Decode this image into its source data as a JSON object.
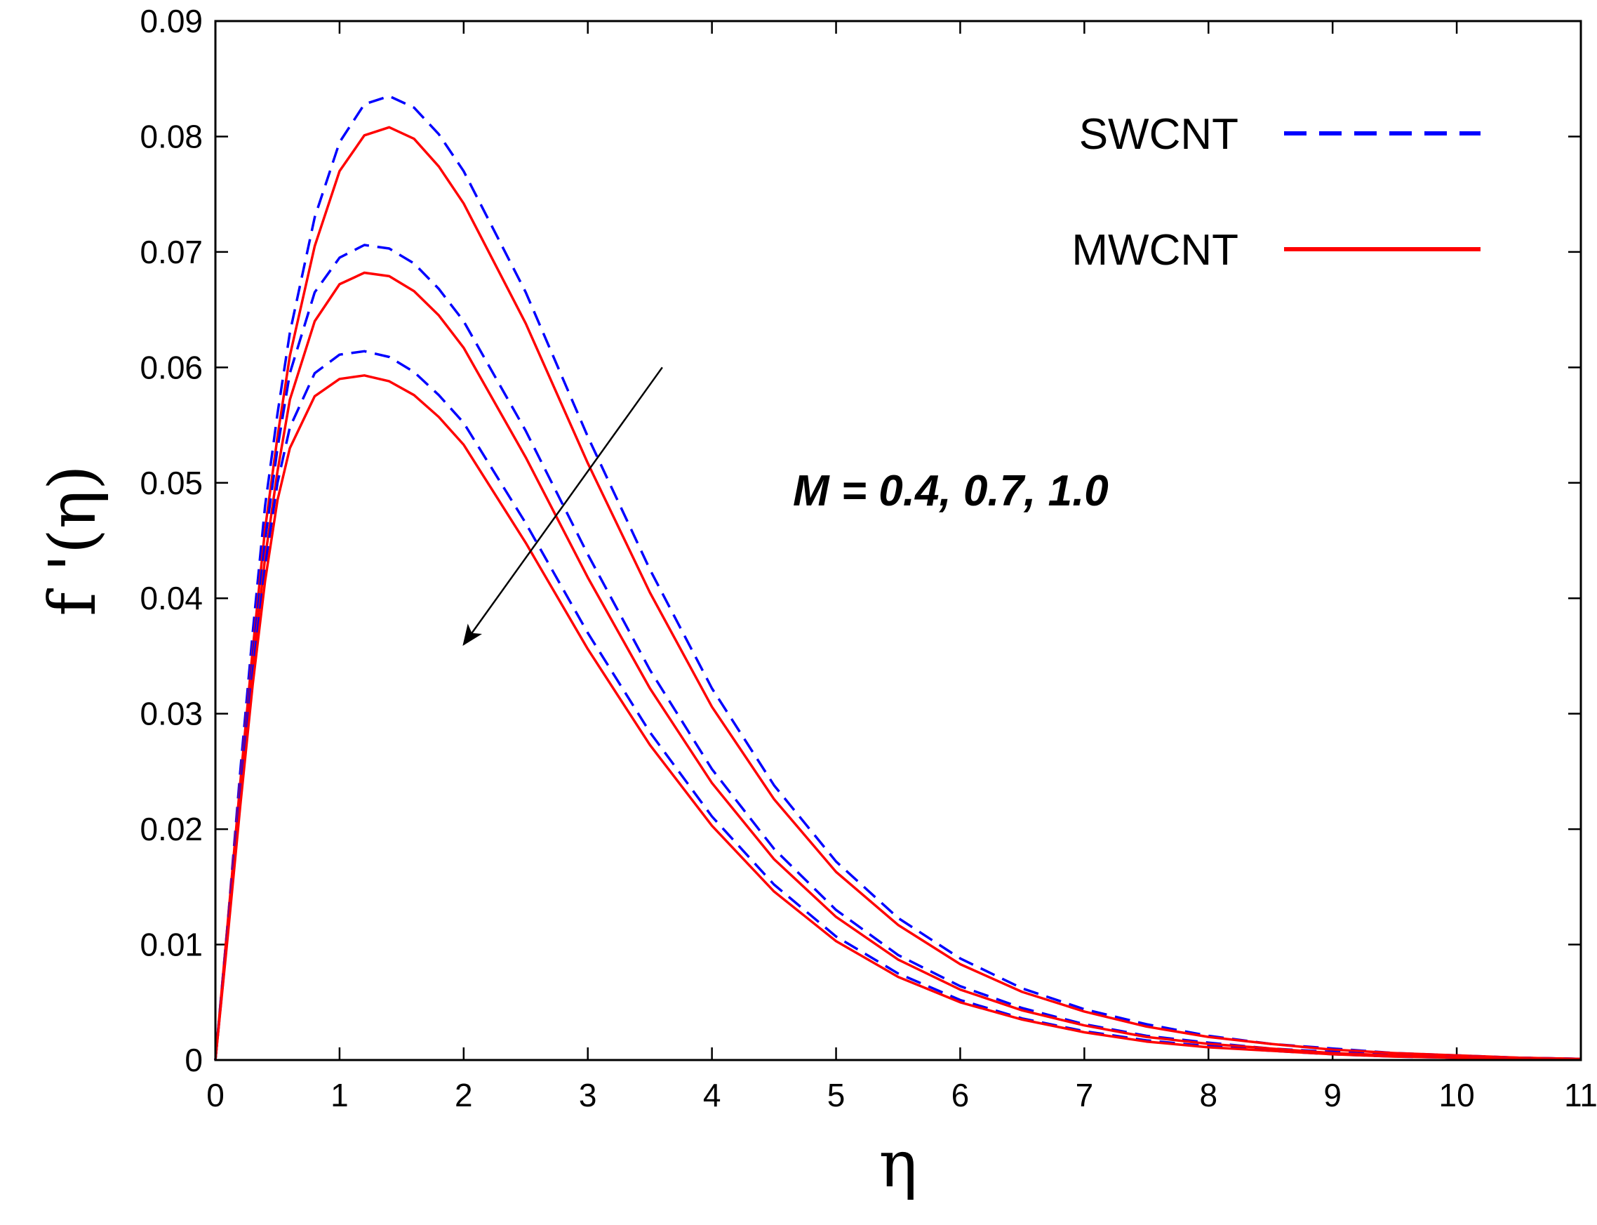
{
  "chart_data": {
    "type": "line",
    "title": "",
    "xlabel": "η",
    "ylabel": "f '(η)",
    "xlim": [
      0,
      11
    ],
    "ylim": [
      0,
      0.09
    ],
    "xticks": [
      0,
      1,
      2,
      3,
      4,
      5,
      6,
      7,
      8,
      9,
      10,
      11
    ],
    "yticks": [
      0,
      0.01,
      0.02,
      0.03,
      0.04,
      0.05,
      0.06,
      0.07,
      0.08,
      0.09
    ],
    "xtick_labels": [
      "0",
      "1",
      "2",
      "3",
      "4",
      "5",
      "6",
      "7",
      "8",
      "9",
      "10",
      "11"
    ],
    "ytick_labels": [
      "0",
      "0.01",
      "0.02",
      "0.03",
      "0.04",
      "0.05",
      "0.06",
      "0.07",
      "0.08",
      "0.09"
    ],
    "legend_position": "top-right",
    "legend": [
      {
        "name": "SWCNT",
        "color": "#0000ff",
        "style": "dashed"
      },
      {
        "name": "MWCNT",
        "color": "#ff0000",
        "style": "solid"
      }
    ],
    "annotation": {
      "text": "M = 0.4, 0.7, 1.0",
      "arrow_from": [
        3.6,
        0.06
      ],
      "arrow_to": [
        2.0,
        0.036
      ]
    },
    "x": [
      0,
      0.1,
      0.2,
      0.3,
      0.4,
      0.5,
      0.6,
      0.8,
      1.0,
      1.2,
      1.4,
      1.6,
      1.8,
      2.0,
      2.5,
      3.0,
      3.5,
      4.0,
      4.5,
      5.0,
      5.5,
      6.0,
      6.5,
      7.0,
      7.5,
      8.0,
      8.5,
      9.0,
      9.5,
      10.0,
      10.5,
      11.0
    ],
    "series": [
      {
        "name": "SWCNT",
        "M": 0.4,
        "color": "#0000ff",
        "style": "dashed",
        "values": [
          0,
          0.012,
          0.025,
          0.037,
          0.048,
          0.056,
          0.063,
          0.073,
          0.0795,
          0.0828,
          0.0835,
          0.0825,
          0.0802,
          0.077,
          0.0665,
          0.054,
          0.0425,
          0.0322,
          0.0238,
          0.0172,
          0.0123,
          0.0088,
          0.0062,
          0.0044,
          0.0031,
          0.0021,
          0.0014,
          0.001,
          0.0006,
          0.0004,
          0.0002,
          0.0001
        ]
      },
      {
        "name": "MWCNT",
        "M": 0.4,
        "color": "#ff0000",
        "style": "solid",
        "values": [
          0,
          0.012,
          0.024,
          0.0355,
          0.046,
          0.054,
          0.061,
          0.0705,
          0.077,
          0.0801,
          0.0808,
          0.0798,
          0.0774,
          0.0742,
          0.0638,
          0.0517,
          0.0405,
          0.0306,
          0.0226,
          0.0163,
          0.0117,
          0.0083,
          0.0059,
          0.0042,
          0.0029,
          0.002,
          0.0014,
          0.0009,
          0.0006,
          0.0004,
          0.0002,
          0.0001
        ]
      },
      {
        "name": "SWCNT",
        "M": 0.7,
        "color": "#0000ff",
        "style": "dashed",
        "values": [
          0,
          0.0115,
          0.0235,
          0.035,
          0.045,
          0.053,
          0.0595,
          0.0665,
          0.0695,
          0.0706,
          0.0703,
          0.069,
          0.0668,
          0.064,
          0.0545,
          0.0438,
          0.0338,
          0.0252,
          0.0183,
          0.013,
          0.0091,
          0.0064,
          0.0045,
          0.0031,
          0.0021,
          0.0015,
          0.001,
          0.0007,
          0.0004,
          0.0003,
          0.0002,
          0.0001
        ]
      },
      {
        "name": "MWCNT",
        "M": 0.7,
        "color": "#ff0000",
        "style": "solid",
        "values": [
          0,
          0.0112,
          0.0228,
          0.034,
          0.0435,
          0.051,
          0.0572,
          0.064,
          0.0672,
          0.0682,
          0.0679,
          0.0666,
          0.0645,
          0.0617,
          0.0522,
          0.0418,
          0.0322,
          0.024,
          0.0174,
          0.0124,
          0.0087,
          0.0061,
          0.0043,
          0.003,
          0.002,
          0.0014,
          0.001,
          0.0006,
          0.0004,
          0.0003,
          0.0002,
          0.0001
        ]
      },
      {
        "name": "SWCNT",
        "M": 1.0,
        "color": "#0000ff",
        "style": "dashed",
        "values": [
          0,
          0.011,
          0.0225,
          0.0335,
          0.0428,
          0.05,
          0.0548,
          0.0595,
          0.0611,
          0.0614,
          0.0609,
          0.0596,
          0.0576,
          0.0552,
          0.0465,
          0.037,
          0.0284,
          0.0211,
          0.0152,
          0.0107,
          0.0075,
          0.0052,
          0.0036,
          0.0025,
          0.0017,
          0.0012,
          0.0008,
          0.0005,
          0.0003,
          0.0002,
          0.0001,
          0.0001
        ]
      },
      {
        "name": "MWCNT",
        "M": 1.0,
        "color": "#ff0000",
        "style": "solid",
        "values": [
          0,
          0.0108,
          0.022,
          0.0325,
          0.0415,
          0.0485,
          0.053,
          0.0575,
          0.059,
          0.0593,
          0.0588,
          0.0576,
          0.0557,
          0.0533,
          0.0448,
          0.0356,
          0.0273,
          0.0203,
          0.0146,
          0.0103,
          0.0072,
          0.005,
          0.0035,
          0.0024,
          0.0016,
          0.0011,
          0.0008,
          0.0005,
          0.0003,
          0.0002,
          0.0001,
          0.0001
        ]
      }
    ]
  }
}
